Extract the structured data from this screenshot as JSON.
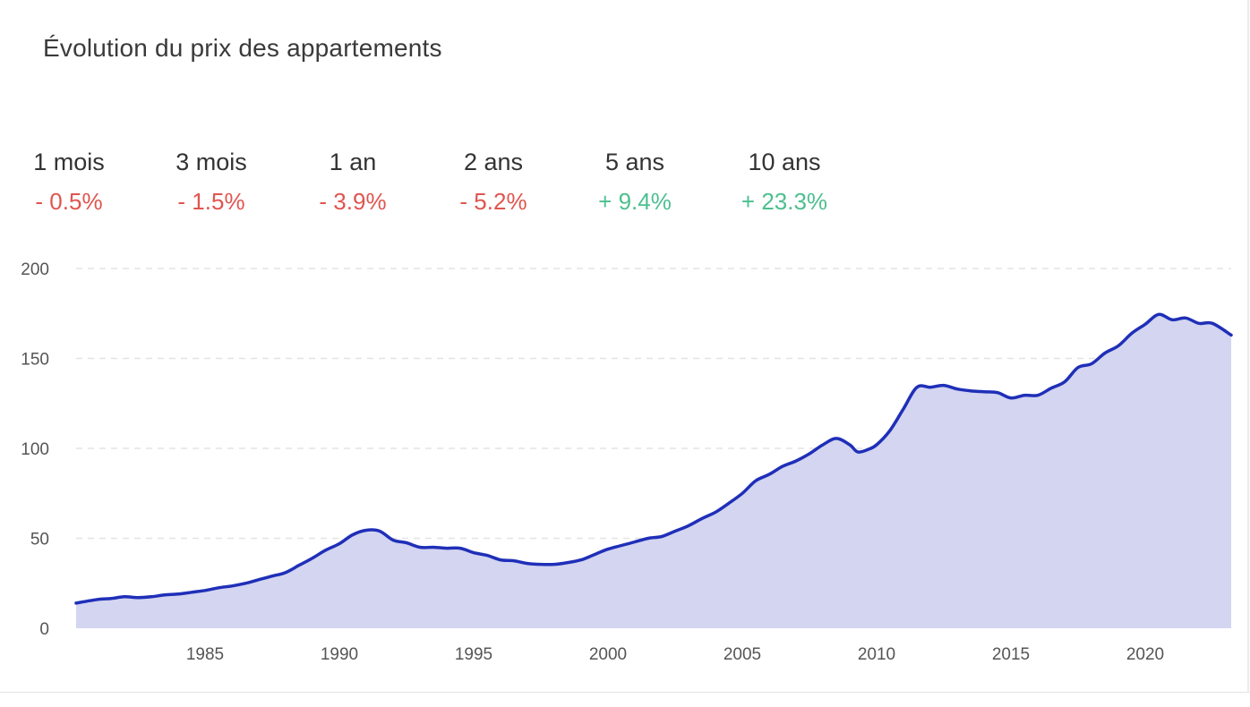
{
  "title": "Évolution du prix des appartements",
  "stats": [
    {
      "label": "1 mois",
      "value": "- 0.5%",
      "trend": "down"
    },
    {
      "label": "3 mois",
      "value": "- 1.5%",
      "trend": "down"
    },
    {
      "label": "1 an",
      "value": "- 3.9%",
      "trend": "down"
    },
    {
      "label": "2 ans",
      "value": "- 5.2%",
      "trend": "down"
    },
    {
      "label": "5 ans",
      "value": "+ 9.4%",
      "trend": "up"
    },
    {
      "label": "10 ans",
      "value": "+ 23.3%",
      "trend": "up"
    }
  ],
  "colors": {
    "line": "#1f2fb8",
    "area": "#d3d5f1",
    "negative": "#e0554f",
    "positive": "#4dbf8f",
    "grid": "#e3e3e3",
    "tick_text": "#555555"
  },
  "chart_data": {
    "type": "area",
    "title": "",
    "xlabel": "",
    "ylabel": "",
    "xlim": [
      1980.2,
      2023.2
    ],
    "ylim": [
      0,
      200
    ],
    "y_ticks": [
      0,
      50,
      100,
      150,
      200
    ],
    "x_ticks": [
      1985,
      1990,
      1995,
      2000,
      2005,
      2010,
      2015,
      2020
    ],
    "grid": true,
    "series": [
      {
        "x": [
          1980.2,
          1981.0,
          1981.5,
          1982.0,
          1982.5,
          1983.0,
          1983.5,
          1984.0,
          1984.5,
          1985.0,
          1985.5,
          1986.0,
          1986.5,
          1987.0,
          1987.5,
          1988.0,
          1988.5,
          1989.0,
          1989.5,
          1990.0,
          1990.5,
          1991.0,
          1991.5,
          1992.0,
          1992.5,
          1993.0,
          1993.5,
          1994.0,
          1994.5,
          1995.0,
          1995.5,
          1996.0,
          1996.5,
          1997.0,
          1997.5,
          1998.0,
          1998.5,
          1999.0,
          1999.5,
          2000.0,
          2000.5,
          2001.0,
          2001.5,
          2002.0,
          2002.5,
          2003.0,
          2003.5,
          2004.0,
          2004.5,
          2005.0,
          2005.5,
          2006.0,
          2006.5,
          2007.0,
          2007.5,
          2008.0,
          2008.5,
          2009.0,
          2009.3,
          2009.7,
          2010.0,
          2010.5,
          2011.0,
          2011.5,
          2012.0,
          2012.5,
          2013.0,
          2013.5,
          2014.0,
          2014.5,
          2015.0,
          2015.5,
          2016.0,
          2016.5,
          2017.0,
          2017.5,
          2018.0,
          2018.5,
          2019.0,
          2019.5,
          2020.0,
          2020.5,
          2021.0,
          2021.5,
          2022.0,
          2022.5,
          2023.2
        ],
        "values": [
          14,
          16,
          16.5,
          17.5,
          17,
          17.5,
          18.5,
          19,
          20,
          21,
          22.5,
          23.5,
          25,
          27,
          29,
          31,
          35,
          39,
          43.5,
          47,
          52,
          54.5,
          54,
          49,
          47.5,
          45,
          45,
          44.5,
          44.5,
          42,
          40.5,
          38,
          37.5,
          36,
          35.5,
          35.5,
          36.5,
          38,
          41,
          44,
          46,
          48,
          50,
          51,
          54,
          57,
          61,
          64.5,
          69.5,
          75,
          82,
          85.5,
          90,
          93,
          97,
          102,
          105.5,
          102,
          98,
          99.5,
          102,
          110,
          122,
          134,
          134,
          135,
          133,
          132,
          131.5,
          131,
          128,
          129.5,
          129.5,
          133.5,
          137,
          145,
          147,
          153,
          157,
          164,
          169,
          174.5,
          171.5,
          172.5,
          169.5,
          169.5,
          163
        ]
      }
    ]
  }
}
